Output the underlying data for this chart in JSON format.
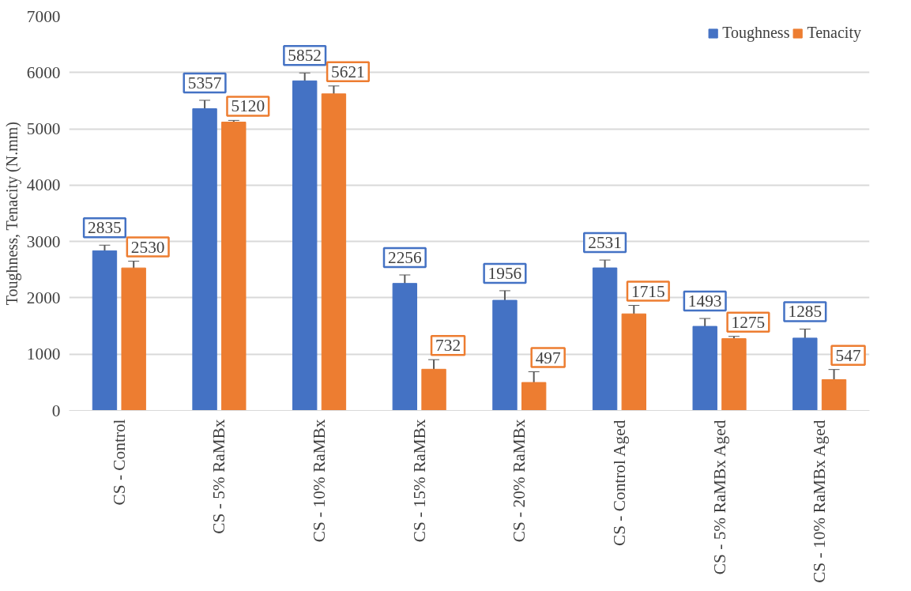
{
  "chart_data": {
    "type": "bar",
    "ylabel": "Toughness, Tenacity (N.mm)",
    "categories": [
      "CS - Control",
      "CS - 5% RaMBx",
      "CS - 10% RaMBx",
      "CS - 15% RaMBx",
      "CS - 20% RaMBx",
      "CS - Control Aged",
      "CS - 5% RaMBx Aged",
      "CS - 10% RaMBx Aged"
    ],
    "series": [
      {
        "name": "Toughness",
        "color": "#4472c4",
        "values": [
          2835,
          5357,
          5852,
          2256,
          1956,
          2531,
          1493,
          1285
        ],
        "errors": [
          100,
          150,
          140,
          150,
          170,
          140,
          140,
          160
        ]
      },
      {
        "name": "Tenacity",
        "color": "#ed7d31",
        "values": [
          2530,
          5120,
          5621,
          732,
          497,
          1715,
          1275,
          547
        ],
        "errors": [
          120,
          30,
          140,
          170,
          190,
          150,
          40,
          180
        ]
      }
    ],
    "ylim": [
      0,
      7000
    ],
    "yticks": [
      0,
      1000,
      2000,
      3000,
      4000,
      5000,
      6000,
      7000
    ],
    "grid": "y",
    "legend": "top right",
    "data_labels": true
  }
}
